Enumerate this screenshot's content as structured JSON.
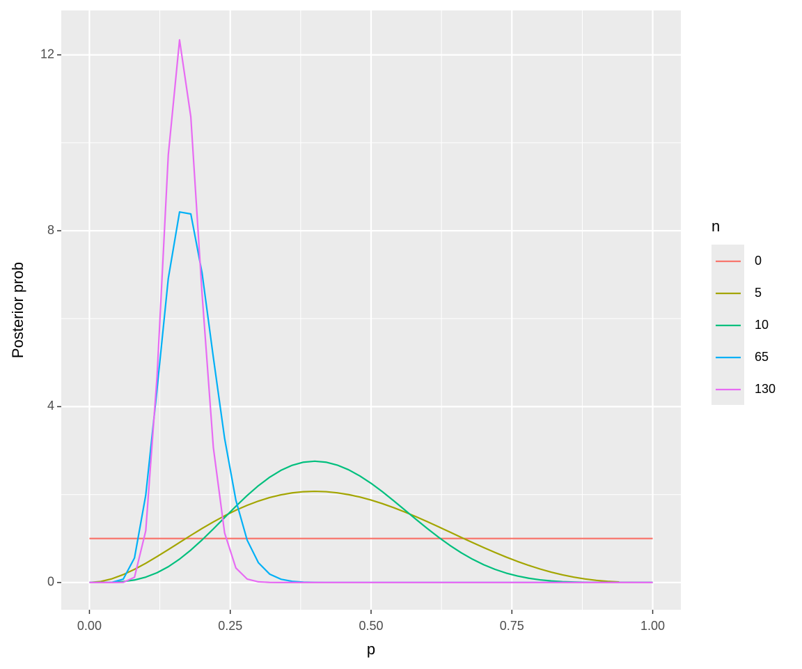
{
  "chart_data": {
    "type": "line",
    "xlabel": "p",
    "ylabel": "Posterior prob",
    "legend_title": "n",
    "legend_position": "right",
    "x": [
      0,
      0.02,
      0.04,
      0.06,
      0.08,
      0.1,
      0.12,
      0.14,
      0.16,
      0.18,
      0.2,
      0.22,
      0.24,
      0.26,
      0.28,
      0.3,
      0.32,
      0.34,
      0.36,
      0.38,
      0.4,
      0.42,
      0.44,
      0.46,
      0.48,
      0.5,
      0.52,
      0.54,
      0.56,
      0.58,
      0.6,
      0.62,
      0.64,
      0.66,
      0.68,
      0.7,
      0.72,
      0.74,
      0.76,
      0.78,
      0.8,
      0.82,
      0.84,
      0.86,
      0.88,
      0.9,
      0.92,
      0.94,
      0.96,
      0.98,
      1
    ],
    "series": [
      {
        "name": "0",
        "color": "#F8766D",
        "values": [
          1,
          1,
          1,
          1,
          1,
          1,
          1,
          1,
          1,
          1,
          1,
          1,
          1,
          1,
          1,
          1,
          1,
          1,
          1,
          1,
          1,
          1,
          1,
          1,
          1,
          1,
          1,
          1,
          1,
          1,
          1,
          1,
          1,
          1,
          1,
          1,
          1,
          1,
          1,
          1,
          1,
          1,
          1,
          1,
          1,
          1,
          1,
          1,
          1,
          1,
          1
        ]
      },
      {
        "name": "5",
        "color": "#A3A500",
        "values": [
          0,
          0.0226,
          0.0849,
          0.1794,
          0.299,
          0.4374,
          0.5888,
          0.748,
          0.9104,
          1.0719,
          1.2288,
          1.3781,
          1.5171,
          1.6436,
          1.7558,
          1.8522,
          1.9319,
          1.9941,
          2.0384,
          2.0649,
          2.0736,
          2.0651,
          2.0399,
          1.9992,
          1.9438,
          1.875,
          1.7942,
          1.703,
          1.6028,
          1.4954,
          1.3824,
          1.2656,
          1.1466,
          1.0272,
          0.9091,
          0.7938,
          0.6828,
          0.5775,
          0.4791,
          0.3887,
          0.3072,
          0.2353,
          0.1734,
          0.1218,
          0.0803,
          0.0486,
          0.026,
          0.0115,
          0.0035,
          0.0005,
          0
        ]
      },
      {
        "name": "10",
        "color": "#00BF7D",
        "values": [
          0,
          0.0003,
          0.0046,
          0.0207,
          0.0574,
          0.1228,
          0.2225,
          0.359,
          0.5319,
          0.7373,
          0.9689,
          1.2187,
          1.4769,
          1.7335,
          1.9782,
          2.2014,
          2.3949,
          2.5516,
          2.6663,
          2.7361,
          2.7591,
          2.7365,
          2.6702,
          2.5647,
          2.4245,
          2.2559,
          2.0657,
          1.861,
          1.6485,
          1.4349,
          1.2263,
          1.0278,
          0.8436,
          0.6771,
          0.5303,
          0.4043,
          0.2992,
          0.214,
          0.1473,
          0.097,
          0.0606,
          0.0355,
          0.0193,
          0.0095,
          0.0041,
          0.0015,
          0.0004,
          0.0001,
          0,
          0,
          0
        ]
      },
      {
        "name": "65",
        "color": "#00B0F6",
        "values": [
          0,
          0,
          0.0027,
          0.0756,
          0.5595,
          1.988,
          4.39,
          6.914,
          8.427,
          8.382,
          7.037,
          5.118,
          3.277,
          1.872,
          0.964,
          0.45,
          0.191,
          0.0744,
          0.0264,
          0.0086,
          0.0026,
          0.0007,
          0.0002,
          0,
          0,
          0,
          0,
          0,
          0,
          0,
          0,
          0,
          0,
          0,
          0,
          0,
          0,
          0,
          0,
          0,
          0,
          0,
          0,
          0,
          0,
          0,
          0,
          0,
          0,
          0,
          0
        ]
      },
      {
        "name": "130",
        "color": "#E76BF3",
        "values": [
          0,
          0,
          0,
          0.003,
          0.119,
          1.177,
          4.676,
          9.723,
          12.34,
          10.59,
          6.56,
          3.07,
          1.127,
          0.33,
          0.079,
          0.0156,
          0.0026,
          0.0003,
          0,
          0,
          0,
          0,
          0,
          0,
          0,
          0,
          0,
          0,
          0,
          0,
          0,
          0,
          0,
          0,
          0,
          0,
          0,
          0,
          0,
          0,
          0,
          0,
          0,
          0,
          0,
          0,
          0,
          0,
          0,
          0,
          0
        ]
      }
    ],
    "xlim": [
      -0.05,
      1.05
    ],
    "ylim": [
      -0.62,
      13.01
    ],
    "xticks": [
      {
        "value": 0,
        "label": "0.00"
      },
      {
        "value": 0.25,
        "label": "0.25"
      },
      {
        "value": 0.5,
        "label": "0.50"
      },
      {
        "value": 0.75,
        "label": "0.75"
      },
      {
        "value": 1,
        "label": "1.00"
      }
    ],
    "yticks": [
      0,
      4,
      8,
      12
    ],
    "x_minor_grid": [
      0.125,
      0.375,
      0.625,
      0.875
    ],
    "y_minor_grid": [
      2,
      6,
      10
    ],
    "grid": true
  }
}
